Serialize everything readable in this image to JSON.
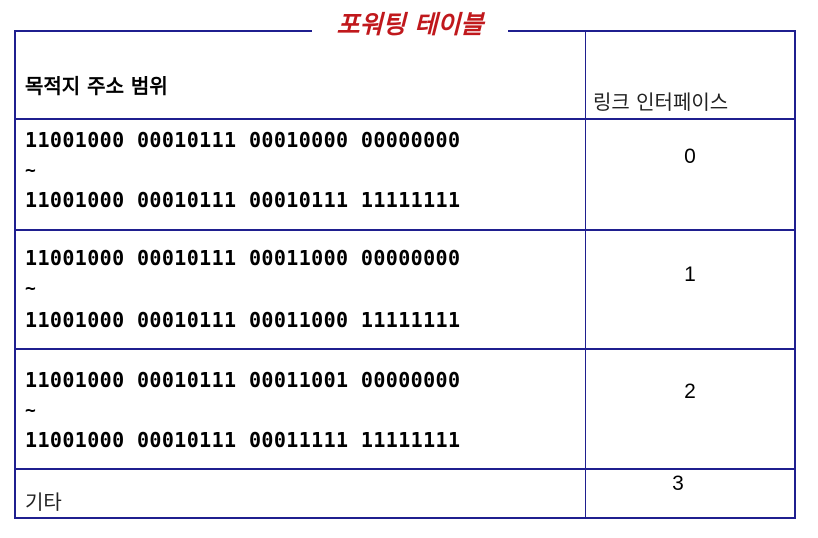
{
  "title": "포워팅 테이블",
  "headers": {
    "destination": "목적지 주소 범위",
    "interface": "링크 인터페이스"
  },
  "rows": [
    {
      "range_start": "11001000  00010111  00010000  00000000",
      "separator": "~",
      "range_end": "11001000  00010111  00010111  11111111",
      "interface": "0"
    },
    {
      "range_start": "11001000  00010111  00011000  00000000",
      "separator": "~",
      "range_end": "11001000  00010111  00011000  11111111",
      "interface": "1"
    },
    {
      "range_start": "11001000  00010111  00011001  00000000",
      "separator": "~",
      "range_end": "11001000  00010111  00011111  11111111",
      "interface": "2"
    }
  ],
  "other_row": {
    "label": "기타",
    "interface": "3"
  },
  "colors": {
    "border": "#1f1f8f",
    "title": "#c0181c"
  }
}
